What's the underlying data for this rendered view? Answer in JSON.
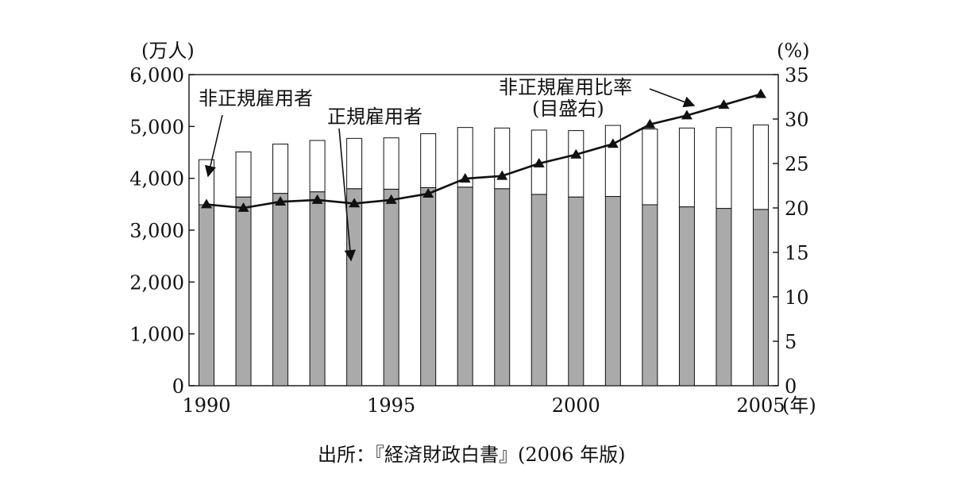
{
  "chart_data": {
    "type": "bar+line",
    "title": "",
    "x": [
      1990,
      1991,
      1992,
      1993,
      1994,
      1995,
      1996,
      1997,
      1998,
      1999,
      2000,
      2001,
      2002,
      2003,
      2004,
      2005
    ],
    "xtick_labels": [
      "1990",
      "1995",
      "2000",
      "2005"
    ],
    "xtick_values": [
      1990,
      1995,
      2000,
      2005
    ],
    "x_unit": "(年)",
    "left_axis": {
      "unit": "(万人)",
      "ylim": [
        0,
        6000
      ],
      "tick_labels": [
        "0",
        "1,000",
        "2,000",
        "3,000",
        "4,000",
        "5,000",
        "6,000"
      ],
      "tick_values": [
        0,
        1000,
        2000,
        3000,
        4000,
        5000,
        6000
      ]
    },
    "right_axis": {
      "unit": "(%)",
      "ylim": [
        0,
        35
      ],
      "tick_labels": [
        "0",
        "5",
        "10",
        "15",
        "20",
        "25",
        "30",
        "35"
      ],
      "tick_values": [
        0,
        5,
        10,
        15,
        20,
        25,
        30,
        35
      ]
    },
    "series": [
      {
        "name": "正規雇用者",
        "kind": "bar-stacked-bottom",
        "color": "#aaaaaa",
        "values": [
          3490,
          3640,
          3710,
          3740,
          3800,
          3790,
          3820,
          3830,
          3800,
          3690,
          3640,
          3650,
          3490,
          3450,
          3420,
          3400
        ]
      },
      {
        "name": "非正規雇用者",
        "kind": "bar-stacked-top",
        "color": "#ffffff",
        "values": [
          870,
          870,
          950,
          990,
          970,
          990,
          1040,
          1150,
          1170,
          1240,
          1280,
          1370,
          1460,
          1520,
          1560,
          1630
        ]
      },
      {
        "name": "非正規雇用比率",
        "kind": "line",
        "axis": "right",
        "marker": "triangle",
        "values": [
          20.4,
          20.0,
          20.7,
          20.9,
          20.5,
          20.9,
          21.6,
          23.3,
          23.6,
          25.0,
          26.0,
          27.2,
          29.4,
          30.4,
          31.6,
          32.8
        ]
      }
    ],
    "annotations": [
      {
        "label": "非正規雇用者"
      },
      {
        "label": "正規雇用者"
      },
      {
        "label": "非正規雇用比率"
      },
      {
        "label": "(目盛右)"
      }
    ],
    "source": "出所：『経済財政白書』(2006 年版)"
  }
}
